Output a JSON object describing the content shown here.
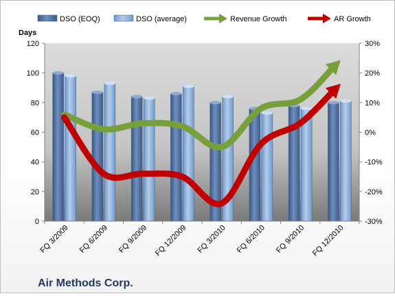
{
  "chart_data": {
    "type": "bar",
    "title": "Air Methods Corp.",
    "categories": [
      "FQ 3/2009",
      "FQ 6/2009",
      "FQ 9/2009",
      "FQ 12/2009",
      "FQ 3/2010",
      "FQ 6/2010",
      "FQ 9/2010",
      "FQ 12/2010"
    ],
    "y_left": {
      "label": "Days",
      "lim": [
        0,
        120
      ],
      "ticks": [
        "0",
        "20",
        "40",
        "60",
        "80",
        "100",
        "120"
      ]
    },
    "y_right": {
      "lim": [
        -30,
        30
      ],
      "ticks": [
        "-30%",
        "-20%",
        "-10%",
        "0%",
        "10%",
        "20%",
        "30%"
      ]
    },
    "series": [
      {
        "name": "DSO (EOQ)",
        "kind": "bar",
        "axis": "left",
        "color": "#4f6fa0",
        "values": [
          100,
          87,
          84,
          86,
          80,
          76,
          78,
          80
        ]
      },
      {
        "name": "DSO (average)",
        "kind": "bar",
        "axis": "left",
        "color": "#8db3e2",
        "values": [
          98,
          93,
          83,
          91,
          84,
          73,
          76,
          81
        ]
      },
      {
        "name": "Revenue Growth",
        "kind": "line-arrow",
        "axis": "right",
        "color": "#77a03a",
        "values": [
          6,
          1,
          3,
          2,
          -5,
          8,
          11,
          24
        ]
      },
      {
        "name": "AR Growth",
        "kind": "line-arrow",
        "axis": "right",
        "color": "#c00000",
        "values": [
          5,
          -14,
          -14,
          -15,
          -24,
          -4,
          3,
          16
        ]
      }
    ],
    "grid": false,
    "legend_position": "top"
  }
}
